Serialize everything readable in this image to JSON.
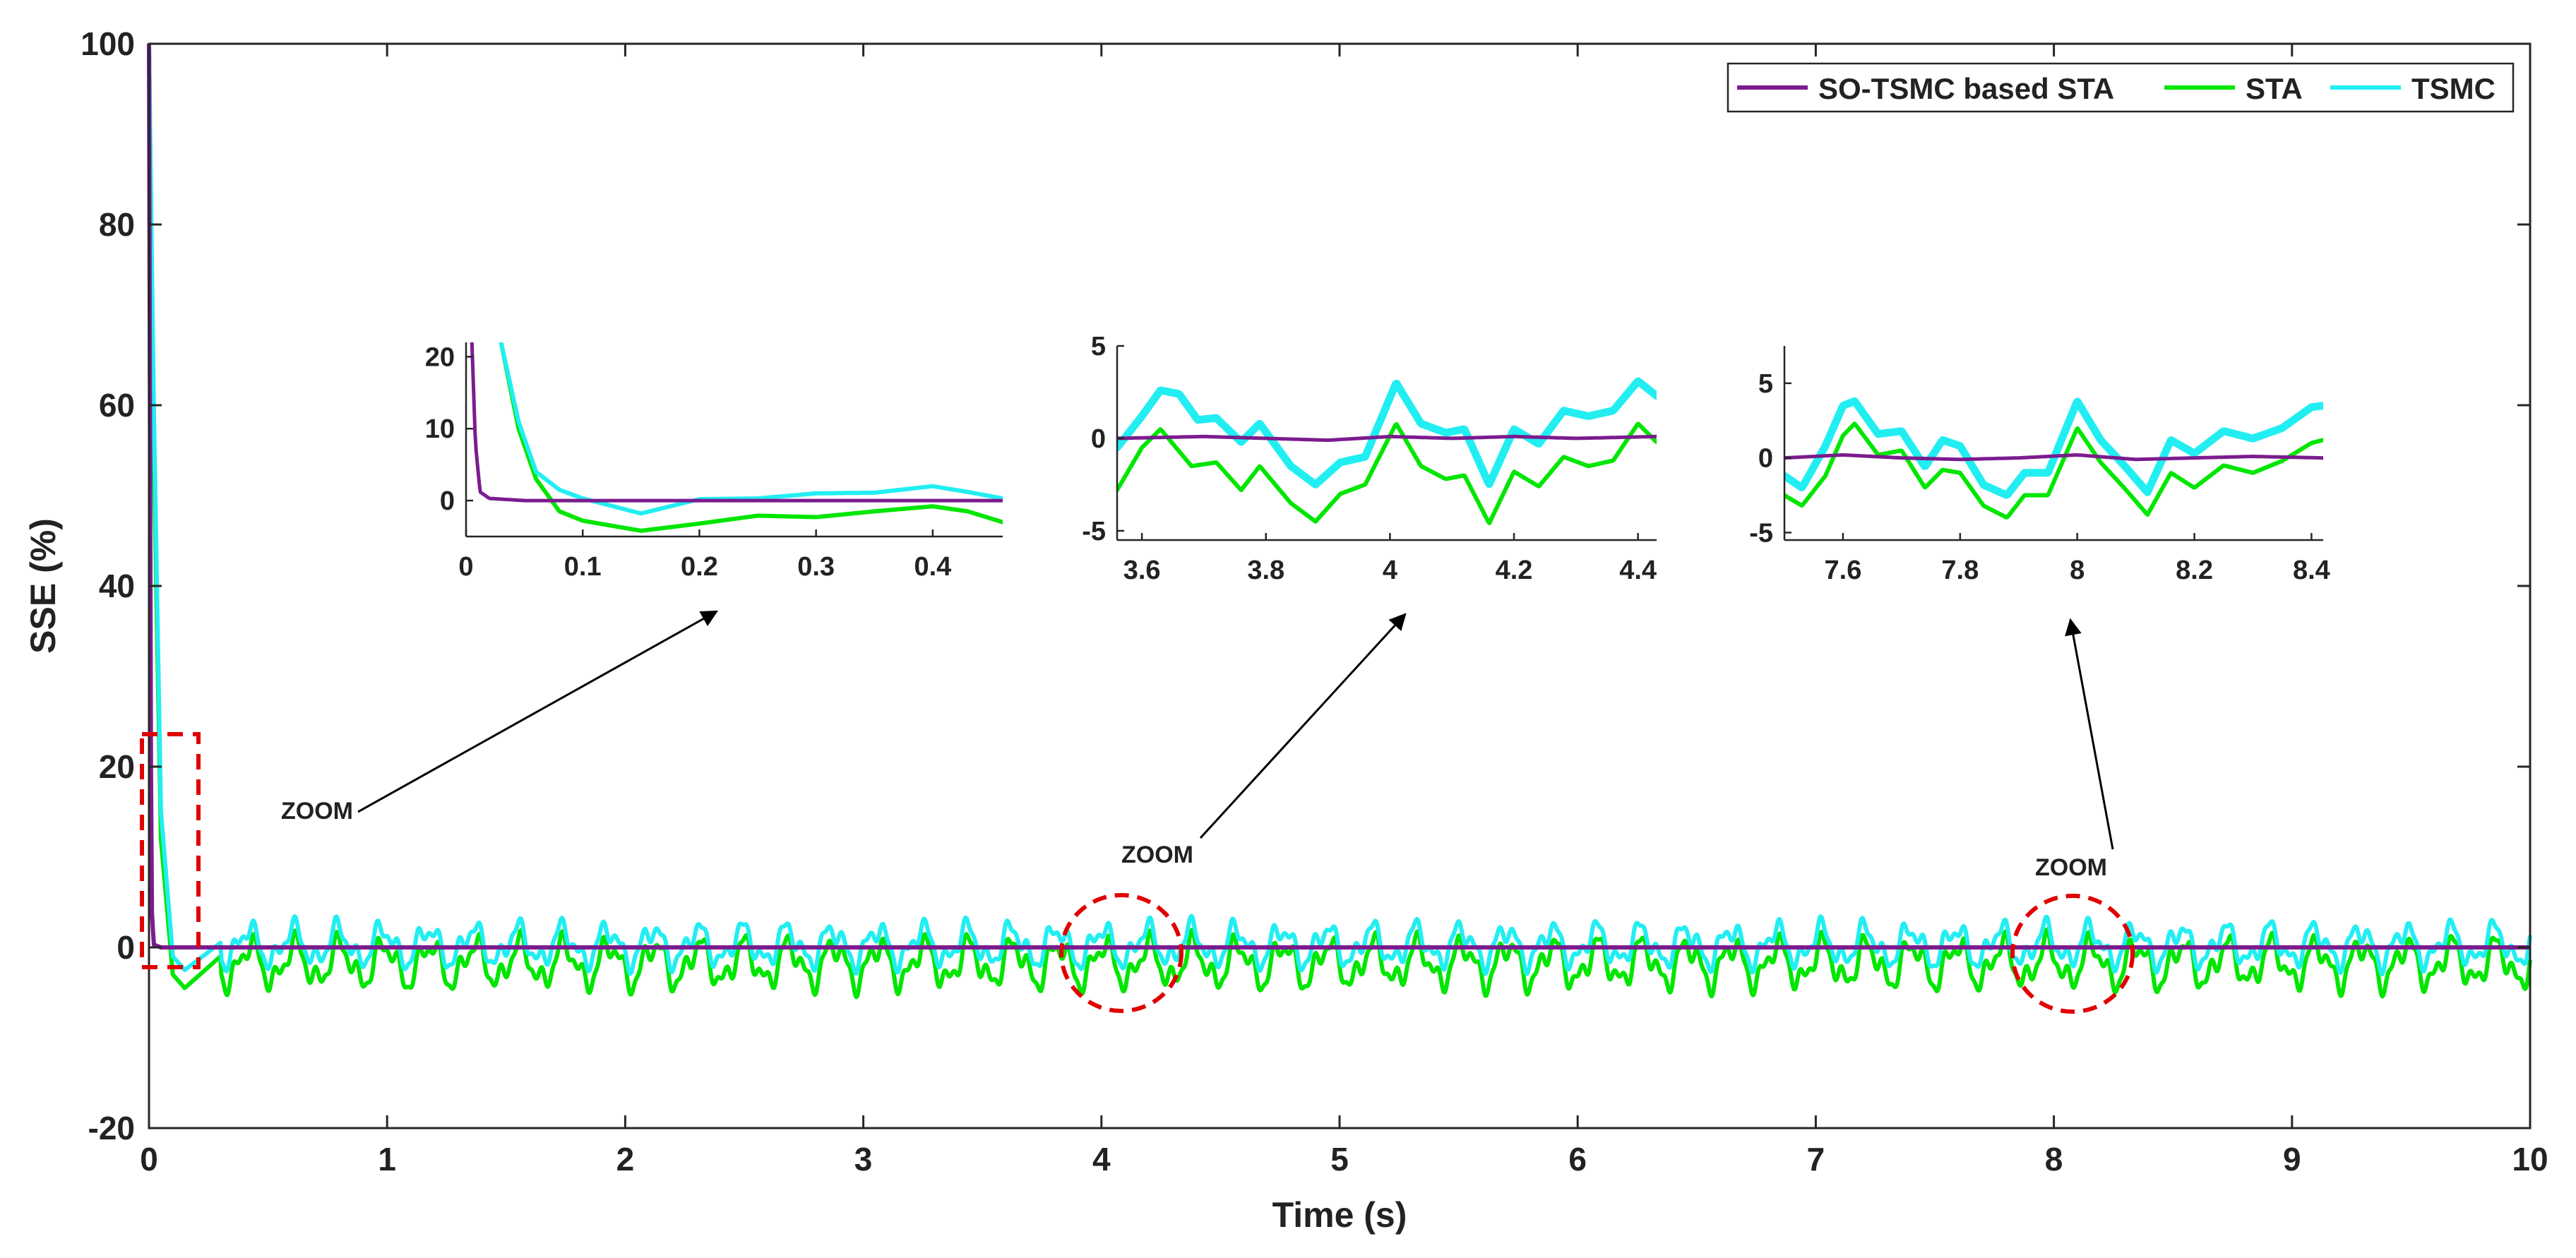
{
  "colors": {
    "so_tsmc_sta": "#7b1c8e",
    "sta": "#00e600",
    "tsmc": "#22eef2",
    "zoom_marker": "#e00000",
    "axis": "#262626",
    "arrow": "#000000"
  },
  "chart_data": [
    {
      "id": "main",
      "type": "line",
      "title": "",
      "xlabel": "Time (s)",
      "ylabel": "SSE (%)",
      "xlim": [
        0,
        10
      ],
      "ylim": [
        -20,
        100
      ],
      "xticks": [
        0,
        1,
        2,
        3,
        4,
        5,
        6,
        7,
        8,
        9,
        10
      ],
      "yticks": [
        -20,
        0,
        20,
        40,
        60,
        80,
        100
      ],
      "legend": {
        "placement": "top-right",
        "entries": [
          "SO-TSMC based STA",
          "STA",
          "TSMC"
        ]
      },
      "series": [
        {
          "name": "SO-TSMC based STA",
          "description": "drops from 100 to 0 within ~0.01 s, then stays near 0",
          "points": [
            [
              0,
              100
            ],
            [
              0.005,
              50
            ],
            [
              0.01,
              5
            ],
            [
              0.02,
              0.3
            ],
            [
              0.05,
              0
            ],
            [
              10,
              0
            ]
          ]
        },
        {
          "name": "STA",
          "description": "decays from 100 to about -4.5 near t=0.15 s, then oscillates between about -5.5 and 2",
          "points": [
            [
              0,
              100
            ],
            [
              0.02,
              55
            ],
            [
              0.05,
              12
            ],
            [
              0.1,
              -3
            ],
            [
              0.15,
              -4.5
            ],
            [
              0.3,
              -1
            ],
            [
              10,
              -1
            ]
          ],
          "steady_range": [
            -5.5,
            2
          ]
        },
        {
          "name": "TSMC",
          "description": "decays from 100 to about -2.5 near t=0.15 s, then oscillates between about -3 and 3.5",
          "points": [
            [
              0,
              100
            ],
            [
              0.02,
              60
            ],
            [
              0.05,
              15
            ],
            [
              0.1,
              -1
            ],
            [
              0.15,
              -2.5
            ],
            [
              0.3,
              0.5
            ],
            [
              10,
              0.5
            ]
          ],
          "steady_range": [
            -3,
            3.5
          ]
        }
      ],
      "annotations": [
        {
          "type": "zoom-box",
          "x_range": [
            0,
            0.2
          ],
          "y_range": [
            -2,
            23.5
          ],
          "label": "ZOOM"
        },
        {
          "type": "zoom-circle",
          "center": [
            4.07,
            -0.5
          ],
          "label": "ZOOM"
        },
        {
          "type": "zoom-circle",
          "center": [
            8.08,
            -0.5
          ],
          "label": "ZOOM"
        }
      ]
    },
    {
      "id": "inset1",
      "type": "line",
      "xlim": [
        0,
        0.46
      ],
      "ylim": [
        -5,
        22
      ],
      "xticks": [
        0,
        0.1,
        0.2,
        0.3,
        0.4
      ],
      "xtick_labels": [
        "0",
        "0.1",
        "0.2",
        "0.3",
        "0.4"
      ],
      "yticks": [
        0,
        10,
        20
      ],
      "series": [
        {
          "name": "SO-TSMC based STA",
          "points": [
            [
              0.005,
              22
            ],
            [
              0.008,
              8
            ],
            [
              0.012,
              1.2
            ],
            [
              0.02,
              0.3
            ],
            [
              0.05,
              0
            ],
            [
              0.46,
              0
            ]
          ]
        },
        {
          "name": "STA",
          "points": [
            [
              0.03,
              22
            ],
            [
              0.045,
              10
            ],
            [
              0.06,
              3
            ],
            [
              0.08,
              -1.5
            ],
            [
              0.1,
              -2.8
            ],
            [
              0.15,
              -4.2
            ],
            [
              0.2,
              -3.2
            ],
            [
              0.25,
              -2.1
            ],
            [
              0.3,
              -2.3
            ],
            [
              0.35,
              -1.5
            ],
            [
              0.4,
              -0.8
            ],
            [
              0.43,
              -1.5
            ],
            [
              0.46,
              -3
            ]
          ]
        },
        {
          "name": "TSMC",
          "points": [
            [
              0.03,
              22
            ],
            [
              0.045,
              11
            ],
            [
              0.06,
              4
            ],
            [
              0.08,
              1.5
            ],
            [
              0.1,
              0.3
            ],
            [
              0.15,
              -1.8
            ],
            [
              0.2,
              0.2
            ],
            [
              0.25,
              0.3
            ],
            [
              0.3,
              1
            ],
            [
              0.35,
              1.1
            ],
            [
              0.4,
              2
            ],
            [
              0.43,
              1.2
            ],
            [
              0.46,
              0.3
            ]
          ]
        }
      ]
    },
    {
      "id": "inset2",
      "type": "line",
      "xlim": [
        3.56,
        4.43
      ],
      "ylim": [
        -5.5,
        5
      ],
      "xticks": [
        3.6,
        3.8,
        4,
        4.2,
        4.4
      ],
      "xtick_labels": [
        "3.6",
        "3.8",
        "4",
        "4.2",
        "4.4"
      ],
      "yticks": [
        -5,
        0,
        5
      ],
      "series": [
        {
          "name": "SO-TSMC based STA",
          "points": [
            [
              3.56,
              0
            ],
            [
              3.7,
              0.1
            ],
            [
              3.8,
              0
            ],
            [
              3.9,
              -0.1
            ],
            [
              4.0,
              0.1
            ],
            [
              4.1,
              0
            ],
            [
              4.2,
              0.1
            ],
            [
              4.3,
              0
            ],
            [
              4.43,
              0.1
            ]
          ]
        },
        {
          "name": "STA",
          "points": [
            [
              3.56,
              -2.8
            ],
            [
              3.6,
              -0.5
            ],
            [
              3.63,
              0.5
            ],
            [
              3.68,
              -1.5
            ],
            [
              3.72,
              -1.3
            ],
            [
              3.76,
              -2.8
            ],
            [
              3.79,
              -1.5
            ],
            [
              3.84,
              -3.5
            ],
            [
              3.88,
              -4.5
            ],
            [
              3.92,
              -3
            ],
            [
              3.96,
              -2.5
            ],
            [
              4.01,
              0.8
            ],
            [
              4.05,
              -1.5
            ],
            [
              4.09,
              -2.2
            ],
            [
              4.12,
              -2
            ],
            [
              4.16,
              -4.6
            ],
            [
              4.2,
              -1.8
            ],
            [
              4.24,
              -2.6
            ],
            [
              4.28,
              -1
            ],
            [
              4.32,
              -1.5
            ],
            [
              4.36,
              -1.2
            ],
            [
              4.4,
              0.8
            ],
            [
              4.43,
              -0.2
            ]
          ]
        },
        {
          "name": "TSMC",
          "points": [
            [
              3.56,
              -0.5
            ],
            [
              3.6,
              1.2
            ],
            [
              3.63,
              2.6
            ],
            [
              3.66,
              2.4
            ],
            [
              3.69,
              1
            ],
            [
              3.72,
              1.1
            ],
            [
              3.76,
              -0.2
            ],
            [
              3.79,
              0.8
            ],
            [
              3.84,
              -1.5
            ],
            [
              3.88,
              -2.5
            ],
            [
              3.92,
              -1.3
            ],
            [
              3.96,
              -1
            ],
            [
              4.01,
              3
            ],
            [
              4.05,
              0.8
            ],
            [
              4.09,
              0.3
            ],
            [
              4.12,
              0.5
            ],
            [
              4.16,
              -2.5
            ],
            [
              4.2,
              0.5
            ],
            [
              4.24,
              -0.3
            ],
            [
              4.28,
              1.5
            ],
            [
              4.32,
              1.2
            ],
            [
              4.36,
              1.5
            ],
            [
              4.4,
              3.1
            ],
            [
              4.43,
              2.3
            ]
          ]
        }
      ]
    },
    {
      "id": "inset3",
      "type": "line",
      "xlim": [
        7.5,
        8.42
      ],
      "ylim": [
        -5.5,
        7.5
      ],
      "xticks": [
        7.6,
        7.8,
        8,
        8.2,
        8.4
      ],
      "xtick_labels": [
        "7.6",
        "7.8",
        "8",
        "8.2",
        "8.4"
      ],
      "yticks": [
        -5,
        0,
        5
      ],
      "series": [
        {
          "name": "SO-TSMC based STA",
          "points": [
            [
              7.5,
              0
            ],
            [
              7.6,
              0.2
            ],
            [
              7.7,
              0
            ],
            [
              7.8,
              -0.1
            ],
            [
              7.9,
              0
            ],
            [
              8.0,
              0.2
            ],
            [
              8.1,
              -0.1
            ],
            [
              8.2,
              0
            ],
            [
              8.3,
              0.1
            ],
            [
              8.42,
              0
            ]
          ]
        },
        {
          "name": "STA",
          "points": [
            [
              7.5,
              -2.5
            ],
            [
              7.53,
              -3.2
            ],
            [
              7.57,
              -1.2
            ],
            [
              7.6,
              1.5
            ],
            [
              7.62,
              2.3
            ],
            [
              7.66,
              0.2
            ],
            [
              7.7,
              0.5
            ],
            [
              7.74,
              -2
            ],
            [
              7.77,
              -0.8
            ],
            [
              7.8,
              -1
            ],
            [
              7.84,
              -3.2
            ],
            [
              7.88,
              -4
            ],
            [
              7.91,
              -2.5
            ],
            [
              7.95,
              -2.5
            ],
            [
              8.0,
              2
            ],
            [
              8.04,
              -0.3
            ],
            [
              8.08,
              -2
            ],
            [
              8.12,
              -3.8
            ],
            [
              8.16,
              -1
            ],
            [
              8.2,
              -2
            ],
            [
              8.25,
              -0.5
            ],
            [
              8.3,
              -1
            ],
            [
              8.35,
              -0.2
            ],
            [
              8.4,
              1
            ],
            [
              8.42,
              1.2
            ]
          ]
        },
        {
          "name": "TSMC",
          "points": [
            [
              7.5,
              -1.2
            ],
            [
              7.53,
              -2
            ],
            [
              7.57,
              0.8
            ],
            [
              7.6,
              3.5
            ],
            [
              7.62,
              3.8
            ],
            [
              7.66,
              1.6
            ],
            [
              7.7,
              1.8
            ],
            [
              7.74,
              -0.6
            ],
            [
              7.77,
              1.2
            ],
            [
              7.8,
              0.8
            ],
            [
              7.84,
              -1.8
            ],
            [
              7.88,
              -2.5
            ],
            [
              7.91,
              -1
            ],
            [
              7.95,
              -1
            ],
            [
              8.0,
              3.8
            ],
            [
              8.04,
              1.2
            ],
            [
              8.08,
              -0.5
            ],
            [
              8.12,
              -2.3
            ],
            [
              8.16,
              1.2
            ],
            [
              8.2,
              0.3
            ],
            [
              8.25,
              1.8
            ],
            [
              8.3,
              1.3
            ],
            [
              8.35,
              2
            ],
            [
              8.4,
              3.4
            ],
            [
              8.42,
              3.5
            ]
          ]
        }
      ]
    }
  ]
}
